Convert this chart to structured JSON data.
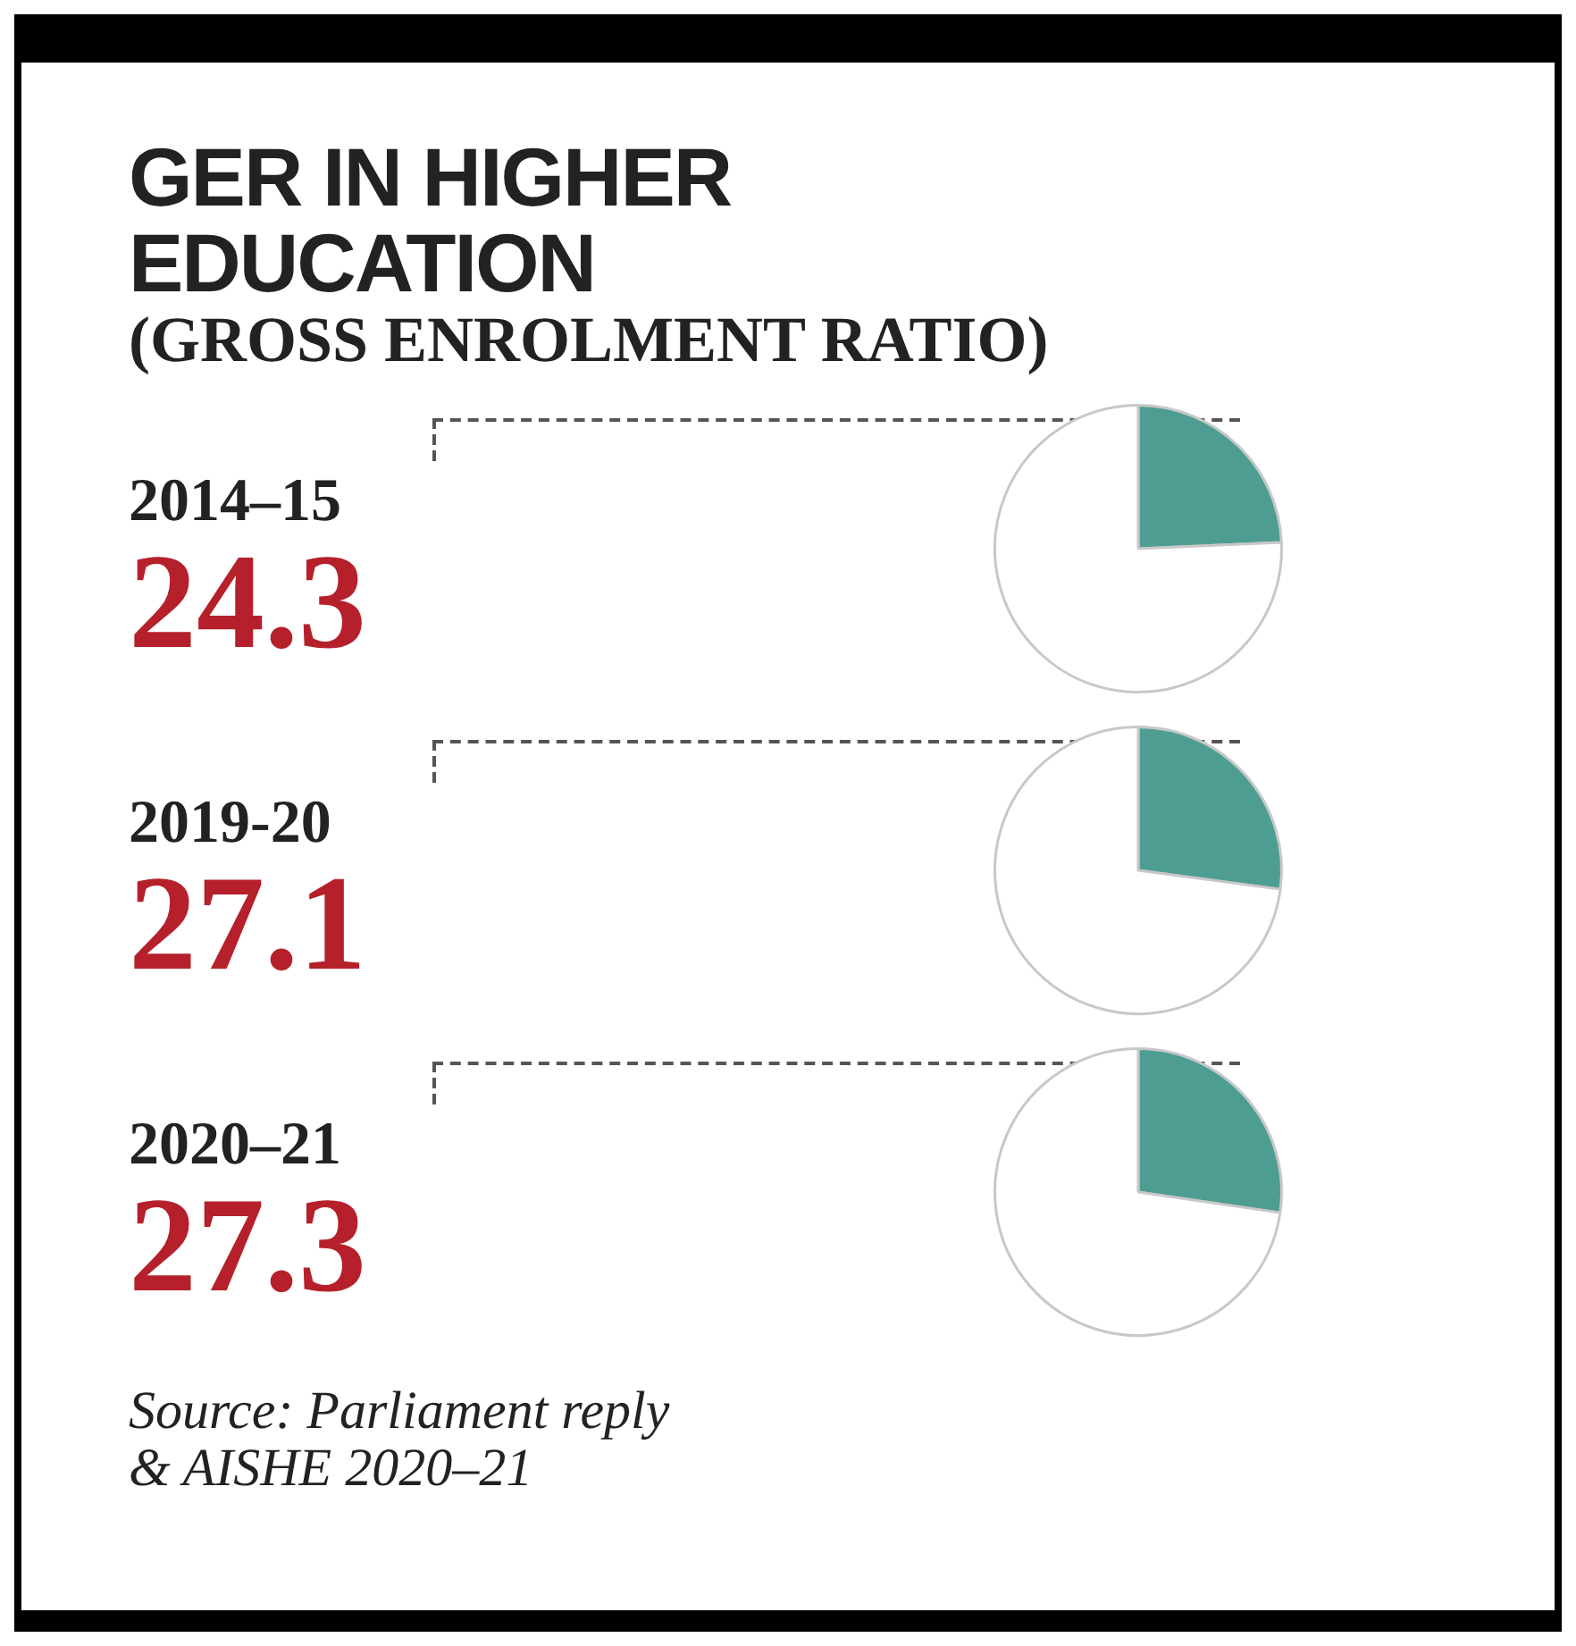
{
  "chart_data": [
    {
      "type": "pie",
      "title": "GER IN HIGHER EDUCATION",
      "subtitle": "(GROSS ENROLMENT RATIO)",
      "xlabel": "2014–15",
      "categories": [
        null,
        null
      ],
      "values": [
        24.3,
        75.7
      ],
      "colors": [
        "#4e9d93",
        "#ffffff"
      ],
      "value_labels": [
        "24.3",
        null
      ]
    },
    {
      "type": "pie",
      "xlabel": "2019-20",
      "categories": [
        null,
        null
      ],
      "values": [
        27.1,
        72.9
      ],
      "colors": [
        "#4e9d93",
        "#ffffff"
      ],
      "value_labels": [
        "27.1",
        null
      ]
    },
    {
      "type": "pie",
      "xlabel": "2020–21",
      "categories": [
        null,
        null
      ],
      "values": [
        27.3,
        72.7
      ],
      "colors": [
        "#4e9d93",
        "#ffffff"
      ],
      "value_labels": [
        "27.3",
        null
      ],
      "annotations": [
        "Source: Parliament reply",
        "& AISHE 2020–21"
      ]
    }
  ]
}
